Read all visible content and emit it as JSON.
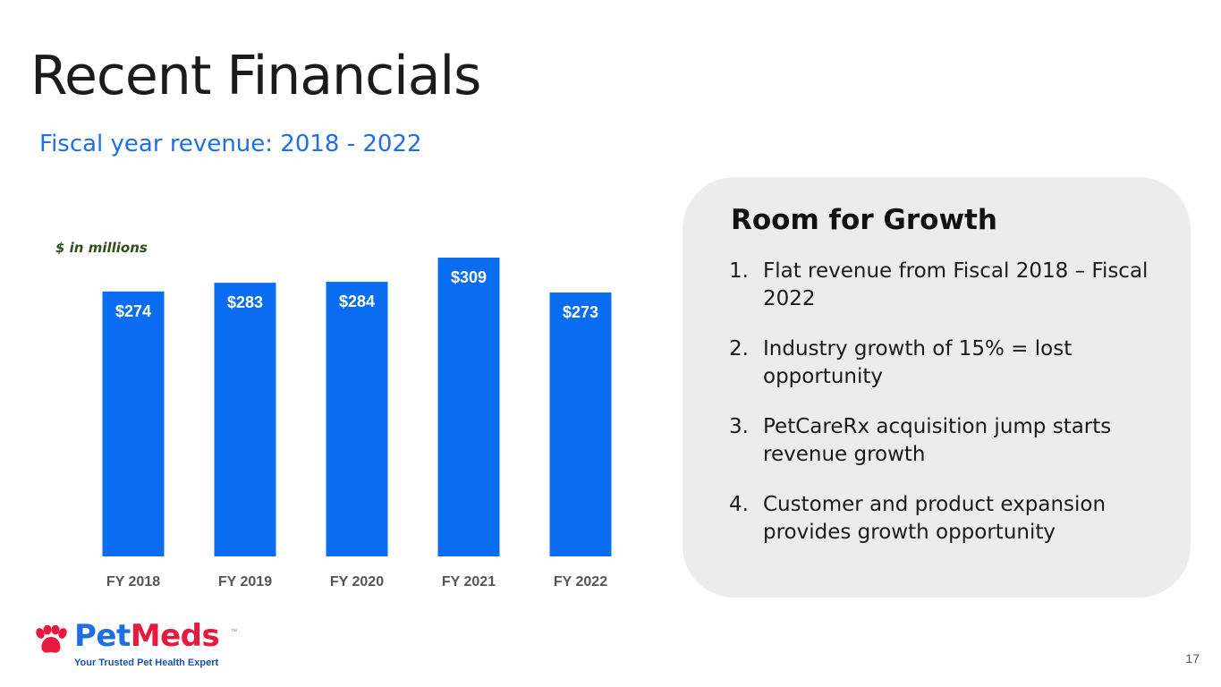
{
  "slide": {
    "title": "Recent Financials",
    "subtitle": "Fiscal year revenue: 2018 - 2022",
    "page_number": "17"
  },
  "chart_data": {
    "type": "bar",
    "title": "",
    "unit_note": "$ in millions",
    "categories": [
      "FY 2018",
      "FY 2019",
      "FY 2020",
      "FY 2021",
      "FY 2022"
    ],
    "values": [
      274,
      283,
      284,
      309,
      273
    ],
    "data_labels": [
      "$274",
      "$283",
      "$284",
      "$309",
      "$273"
    ],
    "xlabel": "",
    "ylabel": "",
    "ylim": [
      0,
      309
    ],
    "bar_color": "#0a6cf0",
    "grid": false,
    "legend": "none"
  },
  "panel": {
    "title": "Room for Growth",
    "items": [
      {
        "num": "1.",
        "text": "Flat revenue from Fiscal 2018 – Fiscal 2022"
      },
      {
        "num": "2.",
        "text": "Industry growth of 15% = lost opportunity"
      },
      {
        "num": "3.",
        "text": "PetCareRx acquisition jump starts revenue growth"
      },
      {
        "num": "4.",
        "text": "Customer and product expansion provides growth opportunity"
      }
    ]
  },
  "logo": {
    "brand_part1": "Pet",
    "brand_part2": "Meds",
    "trademark": "™",
    "tagline": "Your Trusted Pet Health Expert",
    "icon": "paw-icon",
    "colors": {
      "pet": "#1f6fe0",
      "meds": "#e8193e"
    }
  }
}
